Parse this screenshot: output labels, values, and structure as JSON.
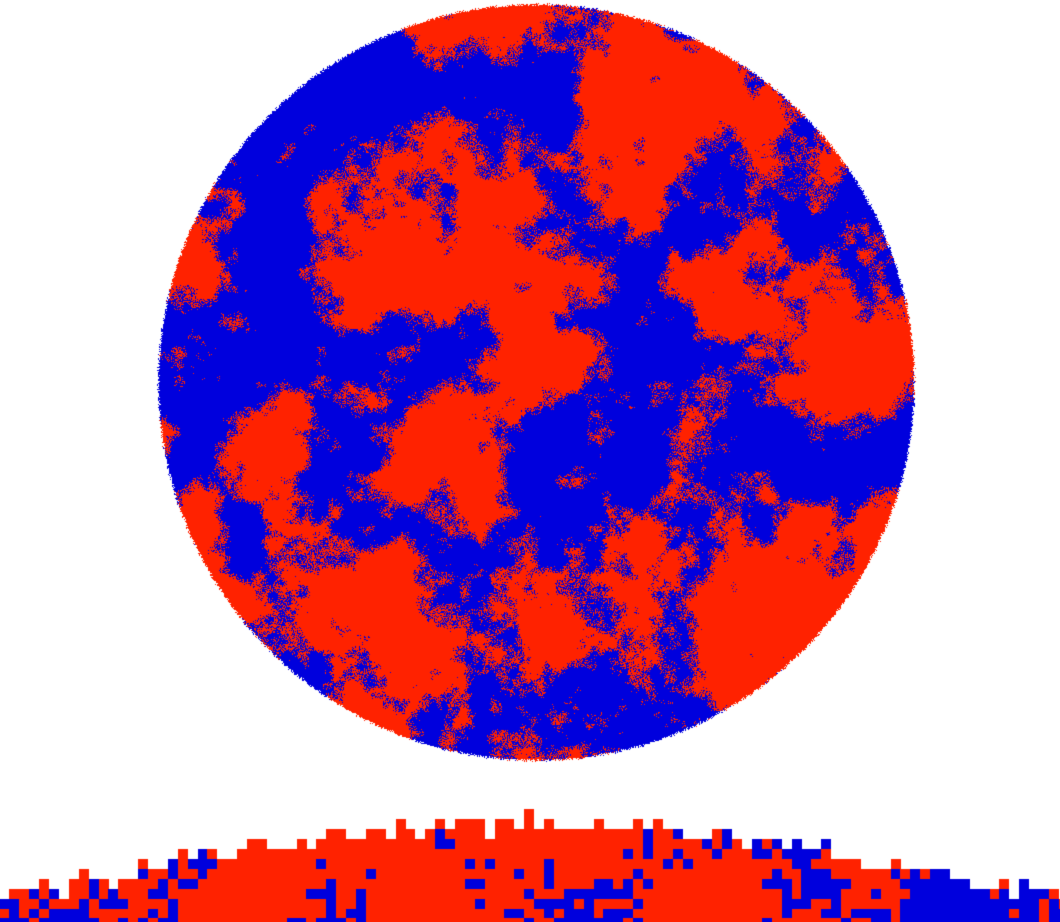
{
  "figure": {
    "colors": {
      "background": "#ffffff",
      "phase_a": "#ff2200",
      "phase_b": "#0000dd"
    },
    "panels": [
      {
        "id": "disk",
        "shape": "circle"
      },
      {
        "id": "strip",
        "shape": "pixelated-cross-section"
      }
    ]
  }
}
